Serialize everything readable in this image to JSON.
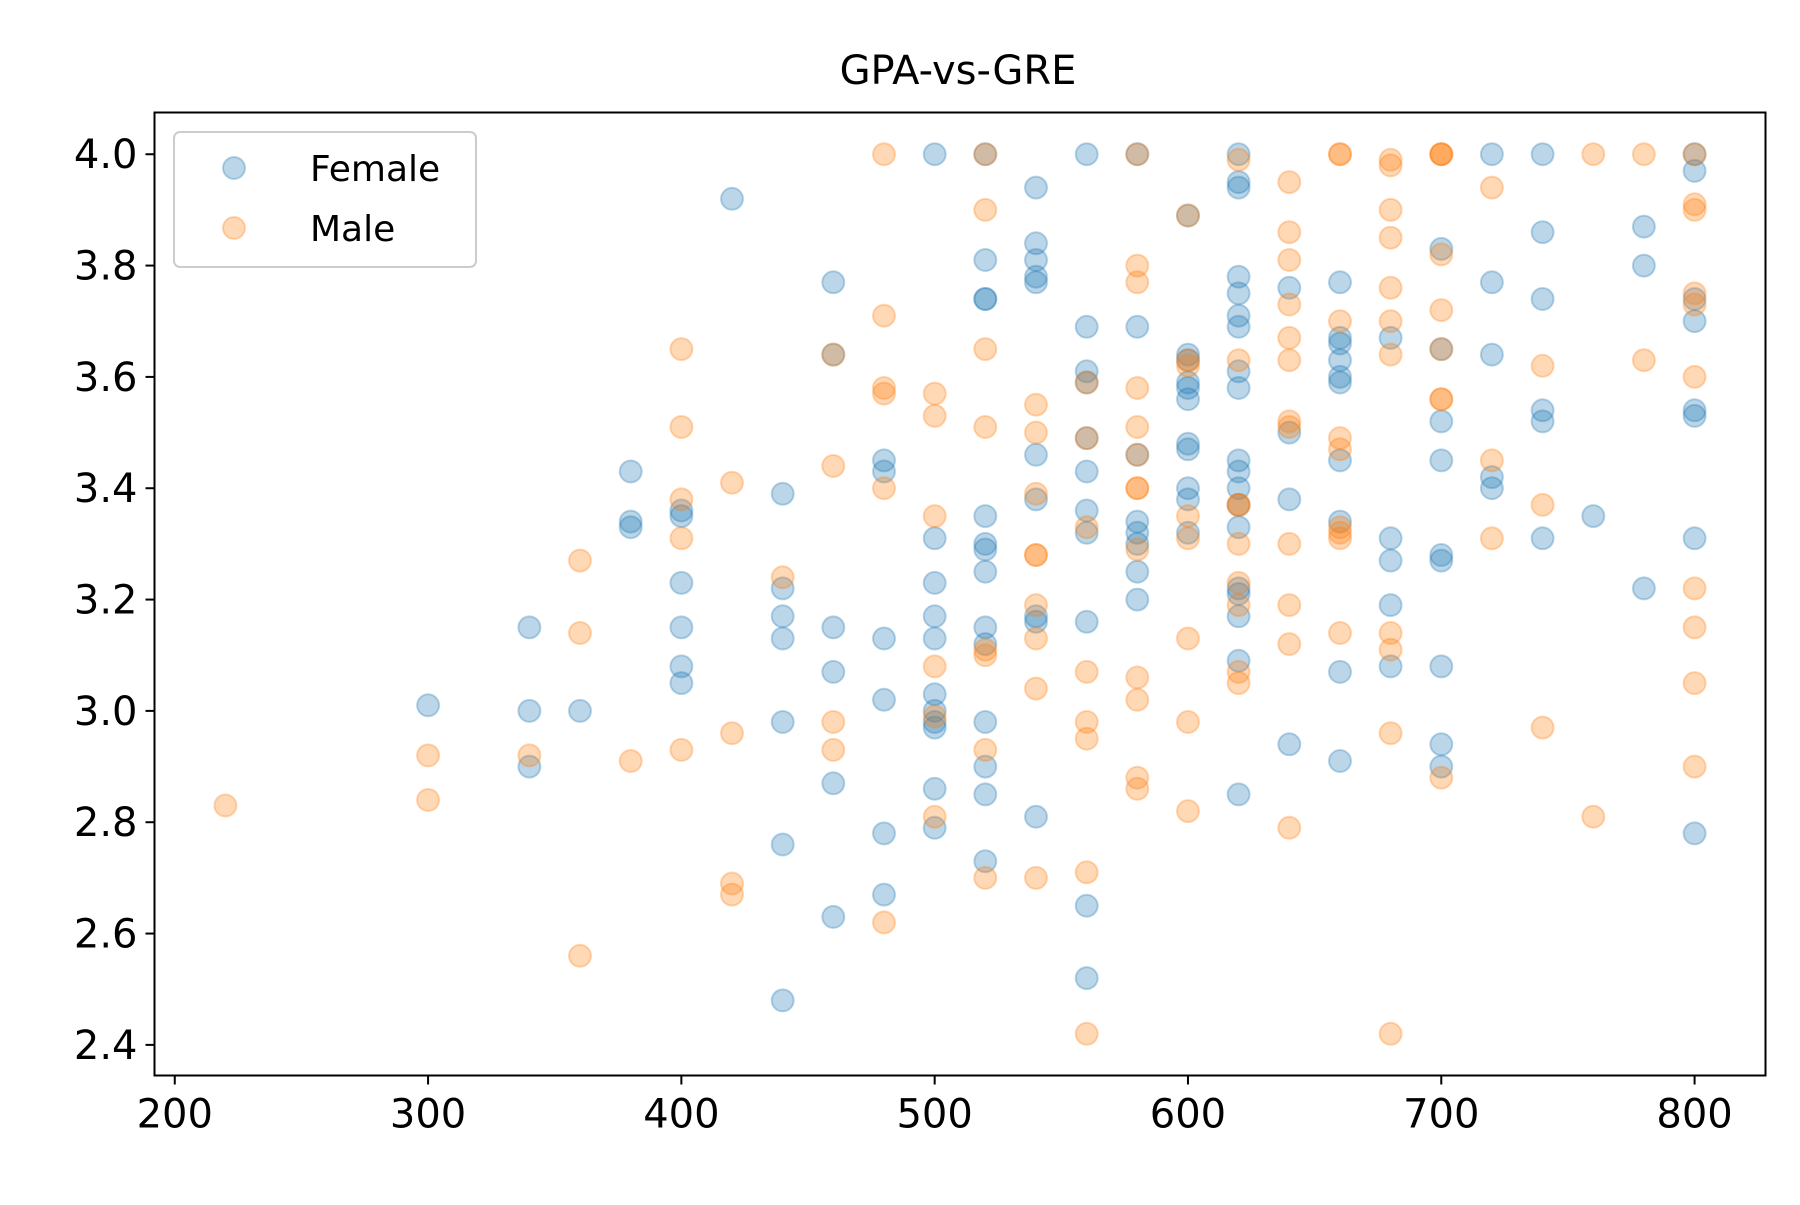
{
  "chart_data": {
    "type": "scatter",
    "title": "GPA-vs-GRE",
    "xlabel": "",
    "ylabel": "",
    "xlim": [
      192,
      828
    ],
    "ylim": [
      2.345,
      4.075
    ],
    "xticks": [
      200,
      300,
      400,
      500,
      600,
      700,
      800
    ],
    "yticks": [
      2.4,
      2.6,
      2.8,
      3.0,
      3.2,
      3.4,
      3.6,
      3.8,
      4.0
    ],
    "xtick_labels": [
      "200",
      "300",
      "400",
      "500",
      "600",
      "700",
      "800"
    ],
    "ytick_labels": [
      "2.4",
      "2.6",
      "2.8",
      "3.0",
      "3.2",
      "3.4",
      "3.6",
      "3.8",
      "4.0"
    ],
    "grid": false,
    "legend_position": "top-left",
    "series": [
      {
        "name": "Female",
        "color": "#1f77b4",
        "points": [
          [
            300,
            3.01
          ],
          [
            340,
            3.15
          ],
          [
            340,
            3.0
          ],
          [
            340,
            2.9
          ],
          [
            360,
            3.0
          ],
          [
            380,
            3.43
          ],
          [
            380,
            3.34
          ],
          [
            380,
            3.33
          ],
          [
            400,
            3.36
          ],
          [
            400,
            3.35
          ],
          [
            400,
            3.23
          ],
          [
            400,
            3.15
          ],
          [
            400,
            3.08
          ],
          [
            400,
            3.05
          ],
          [
            420,
            3.92
          ],
          [
            440,
            3.39
          ],
          [
            440,
            3.22
          ],
          [
            440,
            3.17
          ],
          [
            440,
            3.13
          ],
          [
            440,
            2.98
          ],
          [
            440,
            2.76
          ],
          [
            440,
            2.48
          ],
          [
            460,
            3.77
          ],
          [
            460,
            3.64
          ],
          [
            460,
            3.15
          ],
          [
            460,
            3.07
          ],
          [
            460,
            2.87
          ],
          [
            460,
            2.63
          ],
          [
            480,
            3.45
          ],
          [
            480,
            3.43
          ],
          [
            480,
            3.13
          ],
          [
            480,
            3.02
          ],
          [
            480,
            2.78
          ],
          [
            480,
            2.67
          ],
          [
            500,
            4.0
          ],
          [
            500,
            3.31
          ],
          [
            500,
            3.23
          ],
          [
            500,
            3.17
          ],
          [
            500,
            3.13
          ],
          [
            500,
            3.03
          ],
          [
            500,
            3.0
          ],
          [
            500,
            2.98
          ],
          [
            500,
            2.97
          ],
          [
            500,
            2.86
          ],
          [
            500,
            2.79
          ],
          [
            520,
            4.0
          ],
          [
            520,
            3.81
          ],
          [
            520,
            3.74
          ],
          [
            520,
            3.74
          ],
          [
            520,
            3.35
          ],
          [
            520,
            3.3
          ],
          [
            520,
            3.29
          ],
          [
            520,
            3.25
          ],
          [
            520,
            3.15
          ],
          [
            520,
            3.12
          ],
          [
            520,
            2.98
          ],
          [
            520,
            2.9
          ],
          [
            520,
            2.85
          ],
          [
            520,
            2.73
          ],
          [
            540,
            3.94
          ],
          [
            540,
            3.84
          ],
          [
            540,
            3.81
          ],
          [
            540,
            3.78
          ],
          [
            540,
            3.77
          ],
          [
            540,
            3.46
          ],
          [
            540,
            3.38
          ],
          [
            540,
            3.17
          ],
          [
            540,
            3.16
          ],
          [
            540,
            2.81
          ],
          [
            560,
            4.0
          ],
          [
            560,
            3.69
          ],
          [
            560,
            3.61
          ],
          [
            560,
            3.59
          ],
          [
            560,
            3.49
          ],
          [
            560,
            3.43
          ],
          [
            560,
            3.36
          ],
          [
            560,
            3.32
          ],
          [
            560,
            3.16
          ],
          [
            560,
            2.65
          ],
          [
            560,
            2.52
          ],
          [
            580,
            4.0
          ],
          [
            580,
            3.69
          ],
          [
            580,
            3.46
          ],
          [
            580,
            3.34
          ],
          [
            580,
            3.32
          ],
          [
            580,
            3.3
          ],
          [
            580,
            3.25
          ],
          [
            580,
            3.2
          ],
          [
            600,
            3.89
          ],
          [
            600,
            3.64
          ],
          [
            600,
            3.63
          ],
          [
            600,
            3.59
          ],
          [
            600,
            3.58
          ],
          [
            600,
            3.56
          ],
          [
            600,
            3.48
          ],
          [
            600,
            3.47
          ],
          [
            600,
            3.4
          ],
          [
            600,
            3.38
          ],
          [
            600,
            3.32
          ],
          [
            620,
            4.0
          ],
          [
            620,
            3.95
          ],
          [
            620,
            3.94
          ],
          [
            620,
            3.78
          ],
          [
            620,
            3.75
          ],
          [
            620,
            3.71
          ],
          [
            620,
            3.69
          ],
          [
            620,
            3.61
          ],
          [
            620,
            3.58
          ],
          [
            620,
            3.45
          ],
          [
            620,
            3.43
          ],
          [
            620,
            3.4
          ],
          [
            620,
            3.37
          ],
          [
            620,
            3.33
          ],
          [
            620,
            3.22
          ],
          [
            620,
            3.21
          ],
          [
            620,
            3.17
          ],
          [
            620,
            3.09
          ],
          [
            620,
            2.85
          ],
          [
            640,
            3.76
          ],
          [
            640,
            3.5
          ],
          [
            640,
            3.38
          ],
          [
            640,
            2.94
          ],
          [
            660,
            3.77
          ],
          [
            660,
            3.67
          ],
          [
            660,
            3.66
          ],
          [
            660,
            3.63
          ],
          [
            660,
            3.6
          ],
          [
            660,
            3.59
          ],
          [
            660,
            3.45
          ],
          [
            660,
            3.34
          ],
          [
            660,
            3.07
          ],
          [
            660,
            2.91
          ],
          [
            680,
            3.67
          ],
          [
            680,
            3.31
          ],
          [
            680,
            3.27
          ],
          [
            680,
            3.19
          ],
          [
            680,
            3.08
          ],
          [
            700,
            3.83
          ],
          [
            700,
            3.65
          ],
          [
            700,
            3.52
          ],
          [
            700,
            3.45
          ],
          [
            700,
            3.28
          ],
          [
            700,
            3.27
          ],
          [
            700,
            3.08
          ],
          [
            700,
            2.94
          ],
          [
            700,
            2.9
          ],
          [
            720,
            4.0
          ],
          [
            720,
            3.77
          ],
          [
            720,
            3.64
          ],
          [
            720,
            3.42
          ],
          [
            720,
            3.4
          ],
          [
            740,
            4.0
          ],
          [
            740,
            3.86
          ],
          [
            740,
            3.74
          ],
          [
            740,
            3.54
          ],
          [
            740,
            3.52
          ],
          [
            740,
            3.31
          ],
          [
            760,
            3.35
          ],
          [
            780,
            3.87
          ],
          [
            780,
            3.8
          ],
          [
            780,
            3.22
          ],
          [
            800,
            4.0
          ],
          [
            800,
            3.97
          ],
          [
            800,
            3.74
          ],
          [
            800,
            3.7
          ],
          [
            800,
            3.54
          ],
          [
            800,
            3.53
          ],
          [
            800,
            3.31
          ],
          [
            800,
            2.78
          ]
        ]
      },
      {
        "name": "Male",
        "color": "#ff7f0e",
        "points": [
          [
            220,
            2.83
          ],
          [
            300,
            2.92
          ],
          [
            300,
            2.84
          ],
          [
            340,
            2.92
          ],
          [
            360,
            3.27
          ],
          [
            360,
            3.14
          ],
          [
            360,
            2.56
          ],
          [
            380,
            2.91
          ],
          [
            400,
            3.65
          ],
          [
            400,
            3.51
          ],
          [
            400,
            3.38
          ],
          [
            400,
            3.31
          ],
          [
            400,
            2.93
          ],
          [
            420,
            3.41
          ],
          [
            420,
            2.96
          ],
          [
            420,
            2.69
          ],
          [
            420,
            2.67
          ],
          [
            440,
            3.24
          ],
          [
            460,
            3.64
          ],
          [
            460,
            3.44
          ],
          [
            460,
            2.98
          ],
          [
            460,
            2.93
          ],
          [
            480,
            4.0
          ],
          [
            480,
            3.71
          ],
          [
            480,
            3.58
          ],
          [
            480,
            3.57
          ],
          [
            480,
            3.4
          ],
          [
            480,
            2.62
          ],
          [
            500,
            3.57
          ],
          [
            500,
            3.53
          ],
          [
            500,
            3.35
          ],
          [
            500,
            3.08
          ],
          [
            500,
            2.99
          ],
          [
            500,
            2.81
          ],
          [
            520,
            4.0
          ],
          [
            520,
            3.9
          ],
          [
            520,
            3.65
          ],
          [
            520,
            3.51
          ],
          [
            520,
            3.11
          ],
          [
            520,
            3.1
          ],
          [
            520,
            2.93
          ],
          [
            520,
            2.7
          ],
          [
            540,
            3.55
          ],
          [
            540,
            3.5
          ],
          [
            540,
            3.39
          ],
          [
            540,
            3.28
          ],
          [
            540,
            3.28
          ],
          [
            540,
            3.19
          ],
          [
            540,
            3.13
          ],
          [
            540,
            3.04
          ],
          [
            540,
            2.7
          ],
          [
            560,
            3.59
          ],
          [
            560,
            3.49
          ],
          [
            560,
            3.33
          ],
          [
            560,
            3.07
          ],
          [
            560,
            2.98
          ],
          [
            560,
            2.95
          ],
          [
            560,
            2.71
          ],
          [
            560,
            2.42
          ],
          [
            580,
            4.0
          ],
          [
            580,
            3.8
          ],
          [
            580,
            3.77
          ],
          [
            580,
            3.58
          ],
          [
            580,
            3.51
          ],
          [
            580,
            3.46
          ],
          [
            580,
            3.4
          ],
          [
            580,
            3.4
          ],
          [
            580,
            3.29
          ],
          [
            580,
            3.06
          ],
          [
            580,
            3.02
          ],
          [
            580,
            2.88
          ],
          [
            580,
            2.86
          ],
          [
            600,
            3.89
          ],
          [
            600,
            3.63
          ],
          [
            600,
            3.62
          ],
          [
            600,
            3.35
          ],
          [
            600,
            3.31
          ],
          [
            600,
            3.13
          ],
          [
            600,
            2.98
          ],
          [
            600,
            2.82
          ],
          [
            620,
            3.99
          ],
          [
            620,
            3.63
          ],
          [
            620,
            3.37
          ],
          [
            620,
            3.37
          ],
          [
            620,
            3.3
          ],
          [
            620,
            3.23
          ],
          [
            620,
            3.19
          ],
          [
            620,
            3.07
          ],
          [
            620,
            3.05
          ],
          [
            640,
            3.95
          ],
          [
            640,
            3.86
          ],
          [
            640,
            3.81
          ],
          [
            640,
            3.73
          ],
          [
            640,
            3.67
          ],
          [
            640,
            3.63
          ],
          [
            640,
            3.52
          ],
          [
            640,
            3.51
          ],
          [
            640,
            3.3
          ],
          [
            640,
            3.19
          ],
          [
            640,
            3.12
          ],
          [
            640,
            2.79
          ],
          [
            660,
            4.0
          ],
          [
            660,
            4.0
          ],
          [
            660,
            3.7
          ],
          [
            660,
            3.49
          ],
          [
            660,
            3.47
          ],
          [
            660,
            3.33
          ],
          [
            660,
            3.32
          ],
          [
            660,
            3.31
          ],
          [
            660,
            3.14
          ],
          [
            680,
            3.99
          ],
          [
            680,
            3.98
          ],
          [
            680,
            3.9
          ],
          [
            680,
            3.85
          ],
          [
            680,
            3.76
          ],
          [
            680,
            3.7
          ],
          [
            680,
            3.64
          ],
          [
            680,
            3.14
          ],
          [
            680,
            3.11
          ],
          [
            680,
            2.96
          ],
          [
            680,
            2.42
          ],
          [
            700,
            4.0
          ],
          [
            700,
            4.0
          ],
          [
            700,
            4.0
          ],
          [
            700,
            3.82
          ],
          [
            700,
            3.72
          ],
          [
            700,
            3.65
          ],
          [
            700,
            3.56
          ],
          [
            700,
            3.56
          ],
          [
            700,
            2.88
          ],
          [
            720,
            3.94
          ],
          [
            720,
            3.45
          ],
          [
            720,
            3.31
          ],
          [
            740,
            3.62
          ],
          [
            740,
            3.37
          ],
          [
            740,
            2.97
          ],
          [
            760,
            4.0
          ],
          [
            760,
            2.81
          ],
          [
            780,
            4.0
          ],
          [
            780,
            3.63
          ],
          [
            800,
            4.0
          ],
          [
            800,
            3.91
          ],
          [
            800,
            3.9
          ],
          [
            800,
            3.75
          ],
          [
            800,
            3.73
          ],
          [
            800,
            3.6
          ],
          [
            800,
            3.22
          ],
          [
            800,
            3.15
          ],
          [
            800,
            3.05
          ],
          [
            800,
            2.9
          ]
        ]
      }
    ]
  }
}
